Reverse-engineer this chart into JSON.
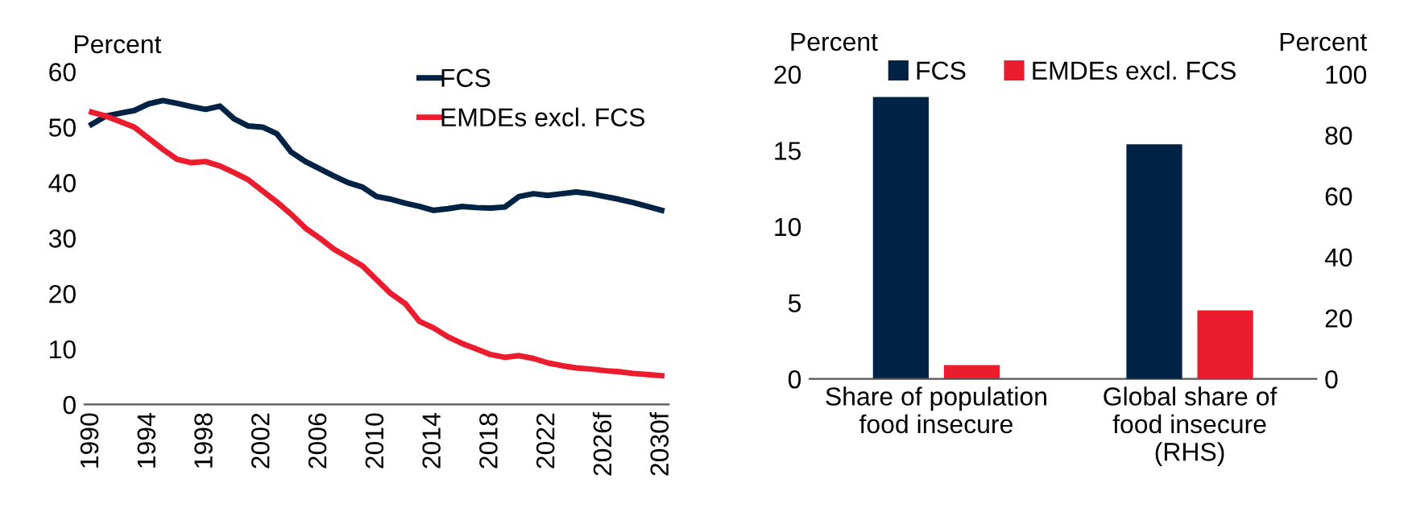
{
  "chart_data": [
    {
      "type": "line",
      "ylabel": "Percent",
      "x": [
        1990,
        1991,
        1992,
        1993,
        1994,
        1995,
        1996,
        1997,
        1998,
        1999,
        2000,
        2001,
        2002,
        2003,
        2004,
        2005,
        2006,
        2007,
        2008,
        2009,
        2010,
        2011,
        2012,
        2013,
        2014,
        2015,
        2016,
        2017,
        2018,
        2019,
        2020,
        2021,
        2022,
        2023,
        2024,
        2025,
        2026,
        2027,
        2028,
        2029,
        2030
      ],
      "series": [
        {
          "name": "FCS",
          "color": "#002244",
          "values": [
            50.5,
            52,
            52.5,
            53,
            54.2,
            54.8,
            54.3,
            53.7,
            53.2,
            53.8,
            51.5,
            50.2,
            50,
            48.8,
            45.5,
            43.8,
            42.5,
            41.2,
            40,
            39.2,
            37.5,
            37,
            36.3,
            35.7,
            35,
            35.3,
            35.7,
            35.5,
            35.4,
            35.6,
            37.5,
            38,
            37.7,
            38,
            38.3,
            38,
            37.5,
            37,
            36.4,
            35.7,
            35
          ]
        },
        {
          "name": "EMDEs excl. FCS",
          "color": "#eb1c2d",
          "values": [
            52.7,
            52,
            51,
            50,
            48,
            46,
            44.2,
            43.6,
            43.8,
            43,
            41.8,
            40.5,
            38.5,
            36.5,
            34.3,
            31.8,
            30,
            28,
            26.5,
            25,
            22.5,
            20,
            18.2,
            15,
            13.8,
            12.2,
            11,
            10,
            9,
            8.5,
            8.8,
            8.3,
            7.5,
            7,
            6.6,
            6.4,
            6.1,
            5.9,
            5.6,
            5.4,
            5.2
          ]
        }
      ],
      "xlim": [
        1989.5,
        2030.5
      ],
      "xticks": [
        1990,
        1994,
        1998,
        2002,
        2006,
        2010,
        2014,
        2018,
        2022,
        {
          "value": 2026,
          "label": "2026f"
        },
        {
          "value": 2030,
          "label": "2030f"
        }
      ],
      "ylim": [
        0,
        60
      ],
      "yticks": [
        0,
        10,
        20,
        30,
        40,
        50,
        60
      ],
      "grid": false,
      "legend": "top right",
      "marker": "none",
      "line_style": "solid"
    },
    {
      "type": "bar",
      "ylabel": "Percent",
      "y2label": "Percent",
      "categories": [
        "Share of population\nfood insecure",
        "Global share of\nfood insecure\n(RHS)"
      ],
      "series": [
        {
          "name": "FCS",
          "color": "#002244",
          "values": [
            18.5,
            null
          ]
        },
        {
          "name": "EMDEs excl. FCS",
          "color": "#eb1c2d",
          "values": [
            0.9,
            null
          ]
        },
        {
          "color": "#002244",
          "values": [
            null,
            77
          ],
          "axis": "y2"
        },
        {
          "color": "#eb1c2d",
          "values": [
            null,
            22.5
          ],
          "axis": "y2"
        }
      ],
      "ylim": [
        0,
        20
      ],
      "yticks": [
        0,
        5,
        10,
        15,
        20
      ],
      "y2lim": [
        0,
        100
      ],
      "y2ticks": [
        0,
        20,
        40,
        60,
        80,
        100
      ],
      "grid": false,
      "legend": "top"
    }
  ]
}
